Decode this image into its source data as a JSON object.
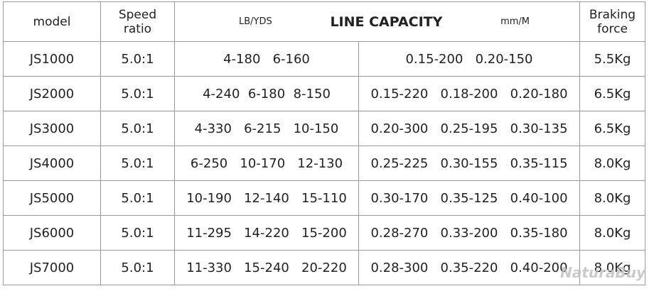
{
  "table": {
    "header": {
      "model": "model",
      "speed": "Speed\nratio",
      "lb": "LB/YDS",
      "capacity": "LINE CAPACITY",
      "mm": "mm/M",
      "braking": "Braking\nforce"
    },
    "rows": [
      [
        "JS1000",
        "5.0:1",
        "4-180   6-160",
        "0.15-200   0.20-150",
        "5.5Kg"
      ],
      [
        "JS2000",
        "5.0:1",
        "4-240  6-180  8-150",
        "0.15-220   0.18-200   0.20-180",
        "6.5Kg"
      ],
      [
        "JS3000",
        "5.0:1",
        "4-330   6-215   10-150",
        "0.20-300   0.25-195   0.30-135",
        "6.5Kg"
      ],
      [
        "JS4000",
        "5.0:1",
        "6-250   10-170   12-130",
        "0.25-225   0.30-155   0.35-115",
        "8.0Kg"
      ],
      [
        "JS5000",
        "5.0:1",
        "10-190   12-140   15-110",
        "0.30-170   0.35-125   0.40-100",
        "8.0Kg"
      ],
      [
        "JS6000",
        "5.0:1",
        "11-295   14-220   15-200",
        "0.28-270   0.33-200   0.35-180",
        "8.0Kg"
      ],
      [
        "JS7000",
        "5.0:1",
        "11-330   15-240   20-220",
        "0.28-300   0.35-220   0.40-200",
        "8.0Kg"
      ]
    ]
  },
  "watermark": "NaturaBuy"
}
